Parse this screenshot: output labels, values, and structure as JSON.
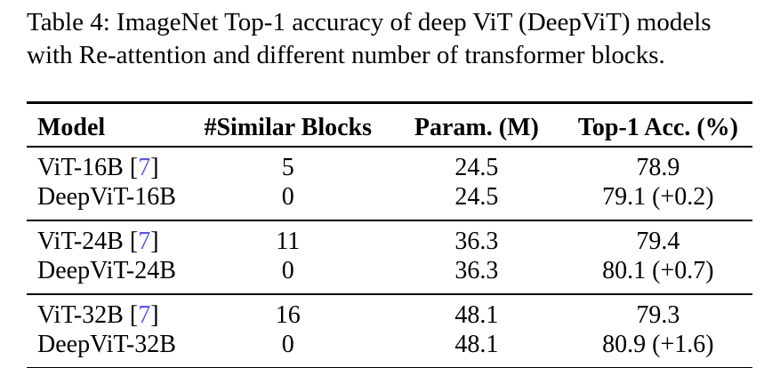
{
  "caption": {
    "line1": "Table 4: ImageNet Top-1 accuracy of deep ViT (DeepViT) models",
    "line2": "with Re-attention and different number of transformer blocks."
  },
  "colors": {
    "text": "#000000",
    "background": "#FFFFFF",
    "citation_link": "#5455F5"
  },
  "table": {
    "headers": {
      "model": "Model",
      "similar_blocks": "#Similar Blocks",
      "params": "Param. (M)",
      "top1_acc": "Top-1 Acc. (%)"
    },
    "groups": [
      {
        "rows": [
          {
            "model": "ViT-16B",
            "cite_open": " [",
            "cite": "7",
            "cite_close": "]",
            "similar_blocks": "5",
            "params_m": "24.5",
            "top1_acc": "78.9"
          },
          {
            "model": "DeepViT-16B",
            "similar_blocks": "0",
            "params_m": "24.5",
            "top1_acc": "79.1 (+0.2)"
          }
        ]
      },
      {
        "rows": [
          {
            "model": "ViT-24B",
            "cite_open": " [",
            "cite": "7",
            "cite_close": "]",
            "similar_blocks": "11",
            "params_m": "36.3",
            "top1_acc": "79.4"
          },
          {
            "model": "DeepViT-24B",
            "similar_blocks": "0",
            "params_m": "36.3",
            "top1_acc": "80.1 (+0.7)"
          }
        ]
      },
      {
        "rows": [
          {
            "model": "ViT-32B",
            "cite_open": " [",
            "cite": "7",
            "cite_close": "]",
            "similar_blocks": "16",
            "params_m": "48.1",
            "top1_acc": "79.3"
          },
          {
            "model": "DeepViT-32B",
            "similar_blocks": "0",
            "params_m": "48.1",
            "top1_acc": "80.9 (+1.6)"
          }
        ]
      }
    ]
  }
}
